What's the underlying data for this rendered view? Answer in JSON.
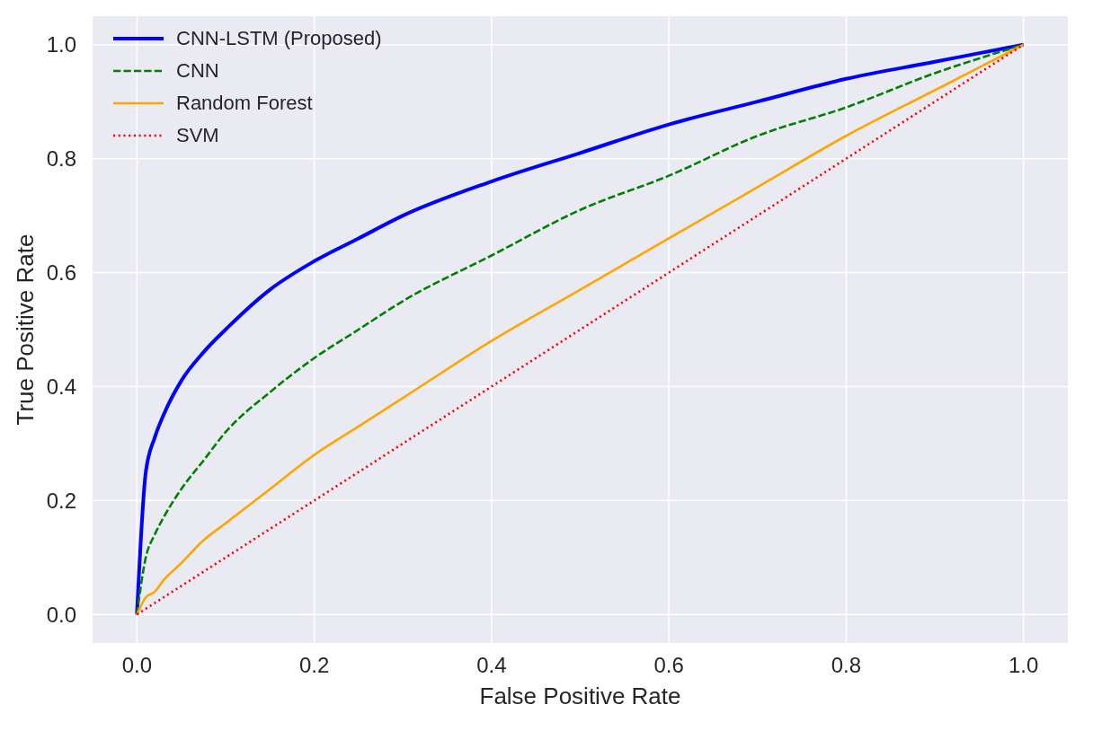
{
  "chart_data": {
    "type": "line",
    "xlabel": "False Positive Rate",
    "ylabel": "True Positive Rate",
    "xlim": [
      -0.05,
      1.05
    ],
    "ylim": [
      -0.05,
      1.05
    ],
    "xticks": [
      {
        "value": 0,
        "label": "0.0"
      },
      {
        "value": 0.2,
        "label": "0.2"
      },
      {
        "value": 0.4,
        "label": "0.4"
      },
      {
        "value": 0.6,
        "label": "0.6"
      },
      {
        "value": 0.8,
        "label": "0.8"
      },
      {
        "value": 1,
        "label": "1.0"
      }
    ],
    "yticks": [
      {
        "value": 0,
        "label": "0.0"
      },
      {
        "value": 0.2,
        "label": "0.2"
      },
      {
        "value": 0.4,
        "label": "0.4"
      },
      {
        "value": 0.6,
        "label": "0.6"
      },
      {
        "value": 0.8,
        "label": "0.8"
      },
      {
        "value": 1,
        "label": "1.0"
      }
    ],
    "grid": true,
    "legend": "top left",
    "marker": "none",
    "x": [
      0,
      0.01,
      0.02,
      0.03,
      0.05,
      0.075,
      0.1,
      0.15,
      0.2,
      0.25,
      0.3,
      0.4,
      0.5,
      0.6,
      0.7,
      0.8,
      0.9,
      1
    ],
    "series": [
      {
        "name": "CNN-LSTM (Proposed)",
        "color": "#0000ff",
        "line_style": "solid",
        "values": [
          0,
          0.25,
          0.31,
          0.35,
          0.41,
          0.46,
          0.5,
          0.57,
          0.62,
          0.66,
          0.7,
          0.76,
          0.81,
          0.86,
          0.9,
          0.94,
          0.97,
          1
        ]
      },
      {
        "name": "CNN",
        "color": "#008000",
        "line_style": "dashed",
        "values": [
          0,
          0.1,
          0.14,
          0.17,
          0.22,
          0.27,
          0.32,
          0.39,
          0.45,
          0.5,
          0.55,
          0.63,
          0.71,
          0.77,
          0.84,
          0.89,
          0.95,
          1
        ]
      },
      {
        "name": "Random Forest",
        "color": "#ffa500",
        "line_style": "solid",
        "values": [
          0,
          0.03,
          0.04,
          0.06,
          0.09,
          0.13,
          0.16,
          0.22,
          0.28,
          0.33,
          0.38,
          0.48,
          0.57,
          0.66,
          0.75,
          0.84,
          0.92,
          1
        ]
      },
      {
        "name": "SVM",
        "color": "#ff0000",
        "line_style": "dotted",
        "values": [
          0,
          0.01,
          0.02,
          0.03,
          0.05,
          0.075,
          0.1,
          0.15,
          0.2,
          0.25,
          0.3,
          0.4,
          0.5,
          0.6,
          0.7,
          0.8,
          0.9,
          1
        ]
      }
    ]
  }
}
